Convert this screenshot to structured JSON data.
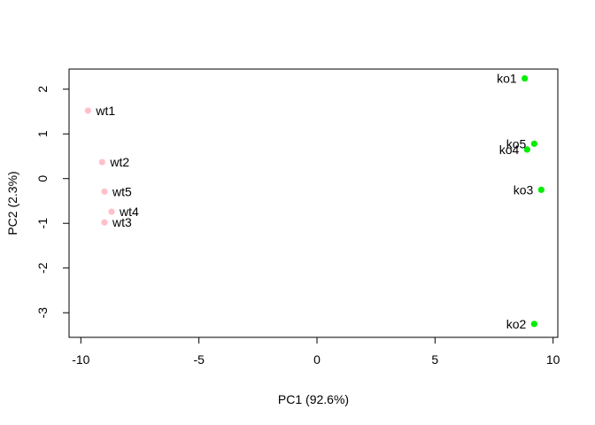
{
  "chart_data": {
    "type": "scatter",
    "title": "",
    "xlabel": "PC1 (92.6%)",
    "ylabel": "PC2 (2.3%)",
    "xlim": [
      -10.5,
      10.2
    ],
    "ylim": [
      -3.55,
      2.45
    ],
    "xticks": [
      -10,
      -5,
      0,
      5,
      10
    ],
    "yticks": [
      -3,
      -2,
      -1,
      0,
      1,
      2
    ],
    "grid": false,
    "legend": "none",
    "series": [
      {
        "color": "#FFC0CB",
        "label_side": "right",
        "points": [
          {
            "label": "wt1",
            "x": -9.7,
            "y": 1.52
          },
          {
            "label": "wt2",
            "x": -9.1,
            "y": 0.37
          },
          {
            "label": "wt5",
            "x": -9.0,
            "y": -0.29
          },
          {
            "label": "wt4",
            "x": -8.7,
            "y": -0.74
          },
          {
            "label": "wt3",
            "x": -9.0,
            "y": -0.98
          }
        ]
      },
      {
        "color": "#00EE00",
        "label_side": "left",
        "points": [
          {
            "label": "ko1",
            "x": 8.8,
            "y": 2.24
          },
          {
            "label": "ko5",
            "x": 9.2,
            "y": 0.78
          },
          {
            "label": "ko4",
            "x": 8.9,
            "y": 0.65
          },
          {
            "label": "ko3",
            "x": 9.5,
            "y": -0.25
          },
          {
            "label": "ko2",
            "x": 9.2,
            "y": -3.25
          }
        ]
      }
    ]
  }
}
